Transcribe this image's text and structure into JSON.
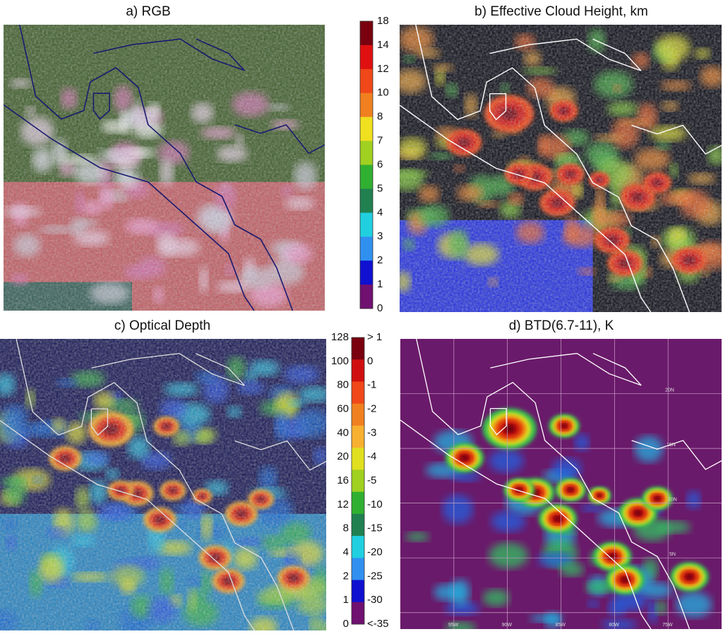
{
  "panels": [
    {
      "title": "a) RGB"
    },
    {
      "title": "b) Effective Cloud Height, km"
    },
    {
      "title": "c) Optical Depth"
    },
    {
      "title": "d) BTD(6.7-11), K"
    }
  ],
  "colorbars": [
    {
      "labels": [
        "18",
        "14",
        "12",
        "10",
        "8",
        "7",
        "6",
        "5",
        "4",
        "3",
        "2",
        "1",
        "0"
      ]
    },
    {
      "left_labels": [
        "128",
        "100",
        "80",
        "60",
        "40",
        "20",
        "16",
        "12",
        "8",
        "4",
        "2",
        "1",
        "0"
      ],
      "right_labels": [
        "> 1",
        "0",
        "-1",
        "-2",
        "-3",
        "-4",
        "-5",
        "-10",
        "-15",
        "-20",
        "-25",
        "-30",
        "<-35"
      ]
    }
  ],
  "map_labels": {
    "lat": [
      "20N",
      "15N",
      "10N",
      "5N"
    ],
    "lon": [
      "95W",
      "90W",
      "85W",
      "80W",
      "75W"
    ]
  }
}
